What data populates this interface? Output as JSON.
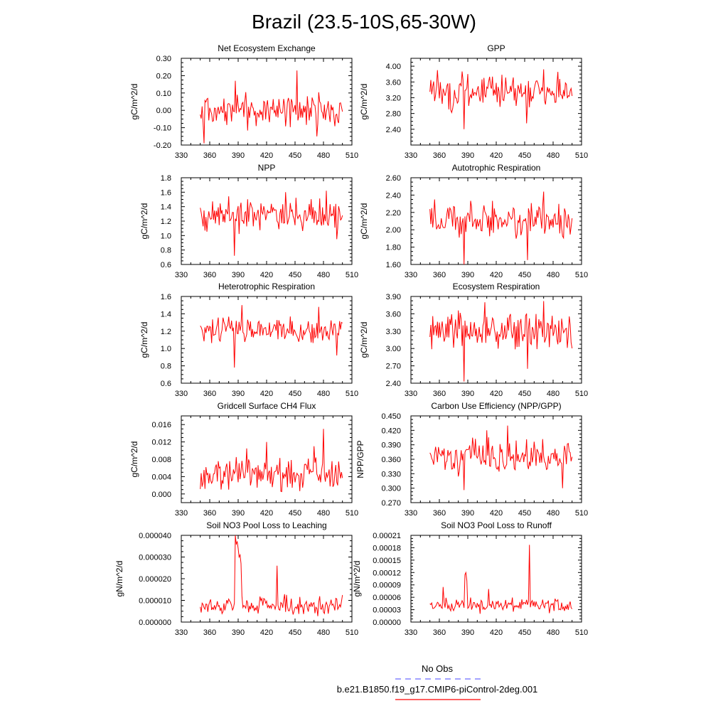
{
  "figure_title": "Brazil (23.5-10S,65-30W)",
  "colors": {
    "model": "#ff0000",
    "obs": "#6a6aff",
    "axis": "#000000"
  },
  "legend": {
    "obs_label": "No Obs",
    "model_label": "b.e21.B1850.f19_g17.CMIP6-piControl-2deg.001"
  },
  "chart_data": [
    {
      "type": "line",
      "title": "Net Ecosystem Exchange",
      "ylabel": "gC/m^2/d",
      "xlim": [
        330,
        510
      ],
      "xticks": [
        "330",
        "360",
        "390",
        "420",
        "450",
        "480",
        "510"
      ],
      "ylim": [
        -0.2,
        0.3
      ],
      "yticks": [
        "-0.20",
        "-0.10",
        "0.00",
        "0.10",
        "0.20",
        "0.30"
      ],
      "ytick_values": [
        -0.2,
        -0.1,
        0.0,
        0.1,
        0.2,
        0.3
      ],
      "x_start": 350,
      "x_end": 500,
      "base": 0.0,
      "amp": 0.09,
      "min": -0.19,
      "max": 0.23,
      "seed": 1,
      "spikes": [
        {
          "x": 354,
          "y": -0.19
        },
        {
          "x": 452,
          "y": 0.23
        },
        {
          "x": 387,
          "y": 0.17
        },
        {
          "x": 473,
          "y": -0.15
        }
      ]
    },
    {
      "type": "line",
      "title": "GPP",
      "ylabel": "gC/m^2/d",
      "xlim": [
        330,
        510
      ],
      "xticks": [
        "330",
        "360",
        "390",
        "420",
        "450",
        "480",
        "510"
      ],
      "ylim": [
        2.0,
        4.2
      ],
      "yticks": [
        "2.40",
        "2.80",
        "3.20",
        "3.60",
        "4.00"
      ],
      "ytick_values": [
        2.4,
        2.8,
        3.2,
        3.6,
        4.0
      ],
      "x_start": 350,
      "x_end": 500,
      "base": 3.35,
      "amp": 0.45,
      "min": 2.4,
      "max": 3.93,
      "seed": 2,
      "spikes": [
        {
          "x": 386,
          "y": 2.4
        },
        {
          "x": 358,
          "y": 3.9
        },
        {
          "x": 470,
          "y": 3.92
        },
        {
          "x": 452,
          "y": 2.55
        }
      ]
    },
    {
      "type": "line",
      "title": "NPP",
      "ylabel": "gC/m^2/d",
      "xlim": [
        330,
        510
      ],
      "xticks": [
        "330",
        "360",
        "390",
        "420",
        "450",
        "480",
        "510"
      ],
      "ylim": [
        0.6,
        1.8
      ],
      "yticks": [
        "0.6",
        "0.8",
        "1.0",
        "1.2",
        "1.4",
        "1.6",
        "1.8"
      ],
      "ytick_values": [
        0.6,
        0.8,
        1.0,
        1.2,
        1.4,
        1.6,
        1.8
      ],
      "x_start": 350,
      "x_end": 500,
      "base": 1.28,
      "amp": 0.22,
      "min": 0.72,
      "max": 1.65,
      "seed": 3,
      "spikes": [
        {
          "x": 386,
          "y": 0.72
        },
        {
          "x": 440,
          "y": 1.6
        },
        {
          "x": 483,
          "y": 1.62
        },
        {
          "x": 494,
          "y": 0.95
        }
      ]
    },
    {
      "type": "line",
      "title": "Autotrophic Respiration",
      "ylabel": "gC/m^2/d",
      "xlim": [
        330,
        510
      ],
      "xticks": [
        "330",
        "360",
        "390",
        "420",
        "450",
        "480",
        "510"
      ],
      "ylim": [
        1.6,
        2.6
      ],
      "yticks": [
        "1.60",
        "1.80",
        "2.00",
        "2.20",
        "2.40",
        "2.60"
      ],
      "ytick_values": [
        1.6,
        1.8,
        2.0,
        2.2,
        2.4,
        2.6
      ],
      "x_start": 350,
      "x_end": 500,
      "base": 2.1,
      "amp": 0.22,
      "min": 1.6,
      "max": 2.44,
      "seed": 4,
      "spikes": [
        {
          "x": 386,
          "y": 1.6
        },
        {
          "x": 355,
          "y": 2.35
        },
        {
          "x": 470,
          "y": 2.44
        },
        {
          "x": 453,
          "y": 1.65
        }
      ]
    },
    {
      "type": "line",
      "title": "Heterotrophic Respiration",
      "ylabel": "gC/m^2/d",
      "xlim": [
        330,
        510
      ],
      "xticks": [
        "330",
        "360",
        "390",
        "420",
        "450",
        "480",
        "510"
      ],
      "ylim": [
        0.6,
        1.6
      ],
      "yticks": [
        "0.6",
        "0.8",
        "1.0",
        "1.2",
        "1.4",
        "1.6"
      ],
      "ytick_values": [
        0.6,
        0.8,
        1.0,
        1.2,
        1.4,
        1.6
      ],
      "x_start": 350,
      "x_end": 500,
      "base": 1.22,
      "amp": 0.15,
      "min": 0.78,
      "max": 1.5,
      "seed": 5,
      "spikes": [
        {
          "x": 386,
          "y": 0.78
        },
        {
          "x": 394,
          "y": 1.5
        },
        {
          "x": 475,
          "y": 1.48
        },
        {
          "x": 494,
          "y": 0.92
        }
      ]
    },
    {
      "type": "line",
      "title": "Ecosystem Respiration",
      "ylabel": "gC/m^2/d",
      "xlim": [
        330,
        510
      ],
      "xticks": [
        "330",
        "360",
        "390",
        "420",
        "450",
        "480",
        "510"
      ],
      "ylim": [
        2.4,
        3.9
      ],
      "yticks": [
        "2.40",
        "2.70",
        "3.00",
        "3.30",
        "3.60",
        "3.90"
      ],
      "ytick_values": [
        2.4,
        2.7,
        3.0,
        3.3,
        3.6,
        3.9
      ],
      "x_start": 350,
      "x_end": 500,
      "base": 3.3,
      "amp": 0.35,
      "min": 2.43,
      "max": 3.82,
      "seed": 6,
      "spikes": [
        {
          "x": 386,
          "y": 2.43
        },
        {
          "x": 408,
          "y": 3.8
        },
        {
          "x": 470,
          "y": 3.82
        },
        {
          "x": 453,
          "y": 2.65
        }
      ]
    },
    {
      "type": "line",
      "title": "Gridcell Surface CH4 Flux",
      "ylabel": "gC/m^2/d",
      "xlim": [
        330,
        510
      ],
      "xticks": [
        "330",
        "360",
        "390",
        "420",
        "450",
        "480",
        "510"
      ],
      "ylim": [
        -0.002,
        0.018
      ],
      "yticks": [
        "0.000",
        "0.004",
        "0.008",
        "0.012",
        "0.016"
      ],
      "ytick_values": [
        0.0,
        0.004,
        0.008,
        0.012,
        0.016
      ],
      "x_start": 350,
      "x_end": 500,
      "base": 0.0045,
      "amp": 0.0045,
      "min": 0.0004,
      "max": 0.015,
      "seed": 7,
      "spikes": [
        {
          "x": 480,
          "y": 0.015
        },
        {
          "x": 420,
          "y": 0.012
        },
        {
          "x": 399,
          "y": 0.0105
        },
        {
          "x": 470,
          "y": 0.011
        }
      ]
    },
    {
      "type": "line",
      "title": "Carbon Use Efficiency (NPP/GPP)",
      "ylabel": "NPP/GPP",
      "xlim": [
        330,
        510
      ],
      "xticks": [
        "330",
        "360",
        "390",
        "420",
        "450",
        "480",
        "510"
      ],
      "ylim": [
        0.27,
        0.45
      ],
      "yticks": [
        "0.270",
        "0.300",
        "0.330",
        "0.360",
        "0.390",
        "0.420",
        "0.450"
      ],
      "ytick_values": [
        0.27,
        0.3,
        0.33,
        0.36,
        0.39,
        0.42,
        0.45
      ],
      "x_start": 350,
      "x_end": 500,
      "base": 0.365,
      "amp": 0.035,
      "min": 0.296,
      "max": 0.43,
      "seed": 8,
      "spikes": [
        {
          "x": 386,
          "y": 0.296
        },
        {
          "x": 432,
          "y": 0.43
        },
        {
          "x": 490,
          "y": 0.3
        },
        {
          "x": 410,
          "y": 0.42
        }
      ]
    },
    {
      "type": "line",
      "title": "Soil NO3 Pool Loss to Leaching",
      "ylabel": "gN/m^2/d",
      "xlim": [
        330,
        510
      ],
      "xticks": [
        "330",
        "360",
        "390",
        "420",
        "450",
        "480",
        "510"
      ],
      "ylim": [
        0.0,
        4e-05
      ],
      "yticks": [
        "0.000000",
        "0.000010",
        "0.000020",
        "0.000030",
        "0.000040"
      ],
      "ytick_values": [
        0.0,
        1e-05,
        2e-05,
        3e-05,
        4e-05
      ],
      "x_start": 350,
      "x_end": 500,
      "base": 7.5e-06,
      "amp": 4.5e-06,
      "min": 2e-06,
      "max": 4e-05,
      "seed": 9,
      "spikes": [
        {
          "x": 387,
          "y": 4e-05
        },
        {
          "x": 388,
          "y": 3.6e-05
        },
        {
          "x": 389,
          "y": 3.7e-05
        },
        {
          "x": 390,
          "y": 3.4e-05
        },
        {
          "x": 391,
          "y": 3e-05
        },
        {
          "x": 392,
          "y": 3.1e-05
        },
        {
          "x": 393,
          "y": 2.7e-05
        },
        {
          "x": 394,
          "y": 1.2e-05
        },
        {
          "x": 431,
          "y": 2.6e-05
        }
      ]
    },
    {
      "type": "line",
      "title": "Soil NO3 Pool Loss to Runoff",
      "ylabel": "gN/m^2/d",
      "xlim": [
        330,
        510
      ],
      "xticks": [
        "330",
        "360",
        "390",
        "420",
        "450",
        "480",
        "510"
      ],
      "ylim": [
        0.0,
        0.00021
      ],
      "yticks": [
        "0.00000",
        "0.00003",
        "0.00006",
        "0.00009",
        "0.00012",
        "0.00015",
        "0.00018",
        "0.00021"
      ],
      "ytick_values": [
        0.0,
        3e-05,
        6e-05,
        9e-05,
        0.00012,
        0.00015,
        0.00018,
        0.00021
      ],
      "x_start": 350,
      "x_end": 500,
      "base": 4e-05,
      "amp": 1.8e-05,
      "min": 2e-05,
      "max": 0.000187,
      "seed": 10,
      "spikes": [
        {
          "x": 455,
          "y": 0.000187
        },
        {
          "x": 387,
          "y": 0.000115
        },
        {
          "x": 388,
          "y": 0.00012
        },
        {
          "x": 389,
          "y": 0.0001
        },
        {
          "x": 364,
          "y": 8.5e-05
        },
        {
          "x": 412,
          "y": 8e-05
        }
      ]
    }
  ]
}
